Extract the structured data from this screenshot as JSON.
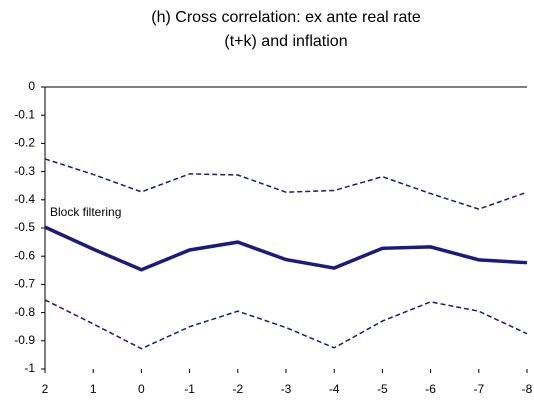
{
  "chart_data": {
    "type": "line",
    "title": [
      "(h) Cross correlation: ex ante real rate",
      "(t+k) and inflation"
    ],
    "categories": [
      "2",
      "1",
      "0",
      "-1",
      "-2",
      "-3",
      "-4",
      "-5",
      "-6",
      "-7",
      "-8"
    ],
    "series": [
      {
        "name": "Block filtering",
        "color": "#1a1a80",
        "style": "solid",
        "values": [
          -0.497,
          -0.575,
          -0.648,
          -0.578,
          -0.55,
          -0.612,
          -0.642,
          -0.572,
          -0.567,
          -0.613,
          -0.623
        ]
      },
      {
        "color": "#1a1a80",
        "style": "dashed",
        "values": [
          -0.255,
          -0.31,
          -0.372,
          -0.308,
          -0.312,
          -0.373,
          -0.367,
          -0.318,
          -0.378,
          -0.433,
          -0.373
        ]
      },
      {
        "color": "#1a1a80",
        "style": "dashed",
        "values": [
          -0.755,
          -0.84,
          -0.928,
          -0.85,
          -0.795,
          -0.853,
          -0.925,
          -0.83,
          -0.762,
          -0.795,
          -0.875
        ]
      }
    ],
    "ylim": [
      -1,
      0
    ],
    "yticks": [
      0,
      -0.1,
      -0.2,
      -0.3,
      -0.4,
      -0.5,
      -0.6,
      -0.7,
      -0.8,
      -0.9,
      -1
    ]
  }
}
